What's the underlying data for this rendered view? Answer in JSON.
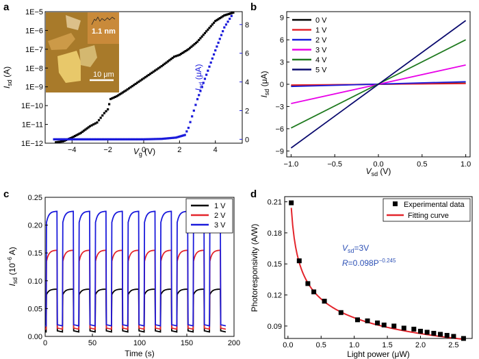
{
  "chart_data": [
    {
      "panel": "a",
      "type": "line",
      "xlabel": "V",
      "xlabel_sub": "g",
      "xlabel_unit": " (V)",
      "ylabel": "I",
      "ylabel_sub": "sd",
      "ylabel_unit": " (A)",
      "y2label": "I",
      "y2label_sub": "sd",
      "y2label_unit": " (μA)",
      "xlim": [
        -5.5,
        5.5
      ],
      "ylim_log": [
        -12,
        -5
      ],
      "y2lim": [
        -0.27,
        8.9
      ],
      "xticks": [
        -4,
        -2,
        0,
        2,
        4
      ],
      "xtick_labels": [
        "−4",
        "−2",
        "0",
        "2",
        "4"
      ],
      "yticks_log": [
        -12,
        -11,
        -10,
        -9,
        -8,
        -7,
        -6,
        -5
      ],
      "ytick_labels": [
        "1E−12",
        "1E−11",
        "1E−10",
        "1E−9",
        "1E−8",
        "1E−7",
        "1E−6",
        "1E−5"
      ],
      "y2ticks": [
        0,
        2,
        4,
        6,
        8
      ],
      "y2tick_labels": [
        "0",
        "2",
        "4",
        "6",
        "8"
      ],
      "series": [
        {
          "name": "log Isd (A)",
          "axis": "left",
          "color": "#000000",
          "points": [
            [
              -4.9,
              -11.95
            ],
            [
              -4.5,
              -11.9
            ],
            [
              -4,
              -11.7
            ],
            [
              -3.5,
              -11.45
            ],
            [
              -3,
              -11.1
            ],
            [
              -2.6,
              -10.9
            ],
            [
              -2.2,
              -10.4
            ],
            [
              -2.0,
              -10.2
            ],
            [
              -1.85,
              -9.65
            ],
            [
              -1.5,
              -9.5
            ],
            [
              -1,
              -9.2
            ],
            [
              0,
              -8.55
            ],
            [
              1,
              -7.9
            ],
            [
              1.7,
              -7.4
            ],
            [
              2.0,
              -7.3
            ],
            [
              2.5,
              -7.0
            ],
            [
              3.0,
              -6.6
            ],
            [
              3.5,
              -6.05
            ],
            [
              4.0,
              -5.5
            ],
            [
              4.5,
              -5.2
            ],
            [
              5.0,
              -5.05
            ]
          ]
        },
        {
          "name": "linear Isd (μA)",
          "axis": "right",
          "color": "#1a1adb",
          "points": [
            [
              -5,
              0
            ],
            [
              -3,
              0
            ],
            [
              0,
              0
            ],
            [
              1,
              0.03
            ],
            [
              1.8,
              0.12
            ],
            [
              2.3,
              0.3
            ],
            [
              2.5,
              0.8
            ],
            [
              2.7,
              1.6
            ],
            [
              3,
              2.8
            ],
            [
              3.5,
              4.5
            ],
            [
              4,
              6.2
            ],
            [
              4.5,
              7.8
            ],
            [
              4.9,
              8.6
            ]
          ]
        }
      ],
      "inset": {
        "height_label": "1.1 nm",
        "scale_label": "10 μm"
      }
    },
    {
      "panel": "b",
      "type": "line",
      "xlabel": "V",
      "xlabel_sub": "sd",
      "xlabel_unit": " (V)",
      "ylabel": "I",
      "ylabel_sub": "sd",
      "ylabel_unit": " (μA)",
      "xlim": [
        -1.05,
        1.05
      ],
      "ylim": [
        -9.8,
        9.8
      ],
      "xticks": [
        -1.0,
        -0.5,
        0.0,
        0.5,
        1.0
      ],
      "xtick_labels": [
        "−1.0",
        "−0.5",
        "0.0",
        "0.5",
        "1.0"
      ],
      "yticks": [
        -9,
        -6,
        -3,
        0,
        3,
        6,
        9
      ],
      "ytick_labels": [
        "−9",
        "−6",
        "−3",
        "0",
        "3",
        "6",
        "9"
      ],
      "series": [
        {
          "name": "0 V",
          "color": "#000000",
          "x": [
            -1,
            1
          ],
          "y": [
            -0.15,
            0.15
          ]
        },
        {
          "name": "1 V",
          "color": "#e3242b",
          "x": [
            -1,
            1
          ],
          "y": [
            -0.1,
            0.1
          ]
        },
        {
          "name": "2 V",
          "color": "#1a1adb",
          "x": [
            -1,
            1
          ],
          "y": [
            -0.3,
            0.35
          ]
        },
        {
          "name": "3 V",
          "color": "#e800e8",
          "x": [
            -1,
            1
          ],
          "y": [
            -2.6,
            2.6
          ]
        },
        {
          "name": "4 V",
          "color": "#1f7a1f",
          "x": [
            -1,
            1
          ],
          "y": [
            -5.9,
            6.0
          ]
        },
        {
          "name": "5 V",
          "color": "#0a0a6e",
          "x": [
            -1,
            1
          ],
          "y": [
            -8.6,
            8.6
          ]
        }
      ]
    },
    {
      "panel": "c",
      "type": "line",
      "xlabel": "Time (s)",
      "ylabel": "I",
      "ylabel_sub": "sd",
      "ylabel_unit": " (10",
      "ylabel_sup": "−6",
      "ylabel_tail": " A)",
      "xlim": [
        0,
        200
      ],
      "ylim": [
        0,
        0.25
      ],
      "xticks": [
        0,
        50,
        100,
        150,
        200
      ],
      "xtick_labels": [
        "0",
        "50",
        "100",
        "150",
        "200"
      ],
      "yticks": [
        0.0,
        0.05,
        0.1,
        0.15,
        0.2,
        0.25
      ],
      "ytick_labels": [
        "0.00",
        "0.05",
        "0.10",
        "0.15",
        "0.20",
        "0.25"
      ],
      "cycle": {
        "start_s": 1,
        "period_s": 17.3,
        "on_s": 11.5,
        "count": 11
      },
      "series": [
        {
          "name": "1 V",
          "color": "#000000",
          "off": 0.008,
          "on": 0.085,
          "on_start": 0.075
        },
        {
          "name": "2 V",
          "color": "#e3242b",
          "off": 0.013,
          "on": 0.155,
          "on_start": 0.135
        },
        {
          "name": "3 V",
          "color": "#1a1adb",
          "off": 0.019,
          "on": 0.225,
          "on_start": 0.205
        }
      ]
    },
    {
      "panel": "d",
      "type": "scatter",
      "xlabel": "Light power (μW)",
      "ylabel": "Photoresponsivity (A/W)",
      "xlim": [
        -0.05,
        2.78
      ],
      "ylim": [
        0.078,
        0.215
      ],
      "xticks": [
        0.0,
        0.5,
        1.0,
        1.5,
        2.0,
        2.5
      ],
      "xtick_labels": [
        "0.0",
        "0.5",
        "1.0",
        "1.5",
        "2.0",
        "2.5"
      ],
      "yticks": [
        0.09,
        0.12,
        0.15,
        0.18,
        0.21
      ],
      "ytick_labels": [
        "0.09",
        "0.12",
        "0.15",
        "0.18",
        "0.21"
      ],
      "series": [
        {
          "name": "Experimental data",
          "color": "#000000",
          "x": [
            0.05,
            0.17,
            0.3,
            0.39,
            0.55,
            0.8,
            1.05,
            1.2,
            1.35,
            1.45,
            1.6,
            1.75,
            1.9,
            2.0,
            2.1,
            2.2,
            2.3,
            2.4,
            2.5,
            2.65
          ],
          "y": [
            0.209,
            0.153,
            0.131,
            0.123,
            0.114,
            0.103,
            0.096,
            0.095,
            0.093,
            0.091,
            0.09,
            0.088,
            0.087,
            0.085,
            0.084,
            0.083,
            0.082,
            0.081,
            0.08,
            0.078
          ]
        },
        {
          "name": "Fitting curve",
          "color": "#e3242b",
          "type": "line",
          "formula_a": 0.098,
          "formula_b": -0.245,
          "x_range": [
            0.05,
            2.65
          ]
        }
      ],
      "annotation": {
        "line1_prefix": "V",
        "line1_sub": "sd",
        "line1_suffix": "=3V",
        "line2_prefix": "R",
        "line2_body": "=0.098P",
        "line2_sup": "−0.245"
      }
    }
  ]
}
